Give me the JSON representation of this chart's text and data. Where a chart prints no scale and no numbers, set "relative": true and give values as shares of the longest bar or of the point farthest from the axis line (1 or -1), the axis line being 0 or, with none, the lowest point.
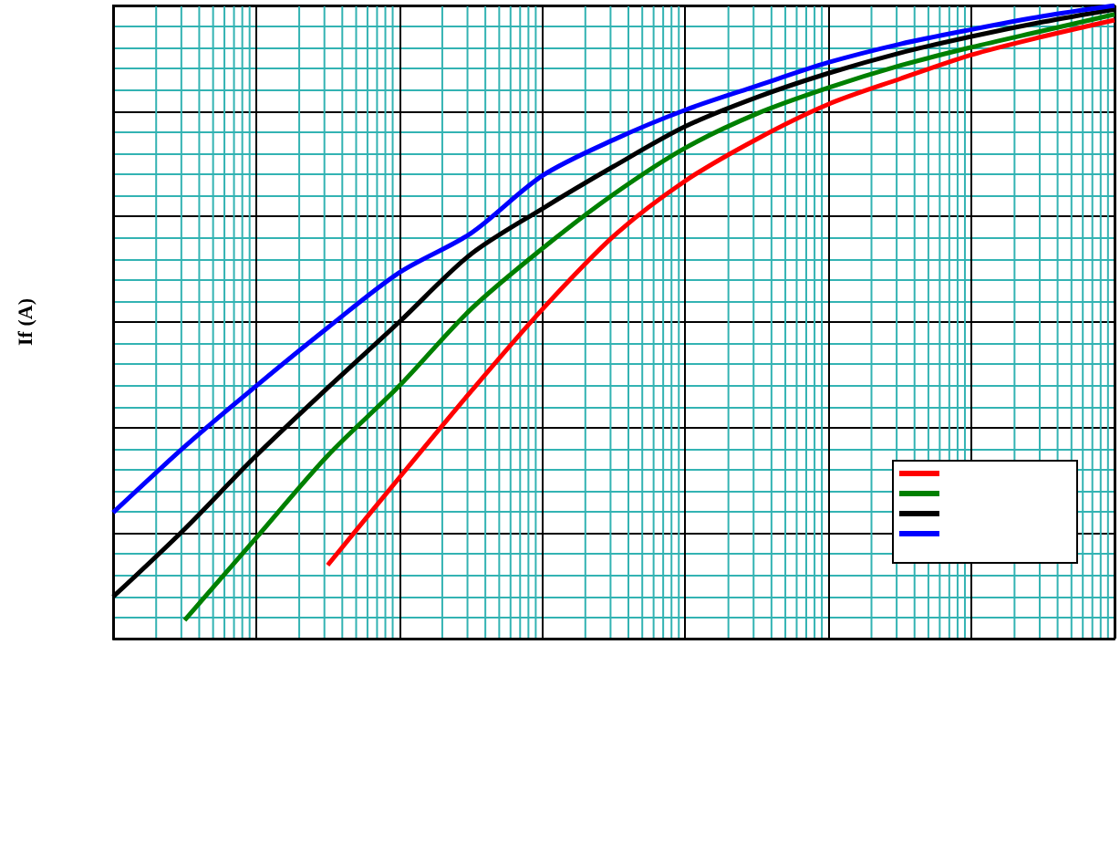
{
  "chart_data": {
    "type": "line",
    "relative": true,
    "ylabel": "If (A)",
    "grid": true,
    "marker": "none",
    "line_style": "solid",
    "categories": [
      null,
      null,
      null,
      null,
      null,
      null,
      null,
      null,
      null,
      null,
      null,
      null,
      null,
      null,
      null
    ],
    "series": [
      {
        "color": "#ff0000",
        "values": [
          null,
          null,
          null,
          0.116,
          0.254,
          0.39,
          0.52,
          0.636,
          0.723,
          0.789,
          0.844,
          0.884,
          0.922,
          0.951,
          0.977
        ]
      },
      {
        "color": "#008000",
        "values": [
          null,
          0.029,
          0.159,
          0.289,
          0.399,
          0.52,
          0.616,
          0.702,
          0.775,
          0.829,
          0.87,
          0.905,
          0.934,
          0.96,
          0.986
        ]
      },
      {
        "color": "#000000",
        "values": [
          0.066,
          0.173,
          0.289,
          0.396,
          0.5,
          0.607,
          0.679,
          0.746,
          0.809,
          0.855,
          0.893,
          0.925,
          0.951,
          0.974,
          0.994
        ]
      },
      {
        "color": "#0000ff",
        "values": [
          0.199,
          0.303,
          0.399,
          0.491,
          0.578,
          0.64,
          0.731,
          0.788,
          0.835,
          0.873,
          0.91,
          0.939,
          0.962,
          0.983,
          1
        ]
      }
    ]
  }
}
